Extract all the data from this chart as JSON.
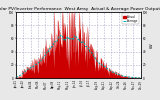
{
  "title": "Solar PV/Inverter Performance  West Array  Actual & Average Power Output",
  "title_fontsize": 3.2,
  "bg_color": "#e8e8e8",
  "plot_bg_color": "#ffffff",
  "grid_color": "#aaaacc",
  "actual_color": "#cc0000",
  "actual_edge_color": "#cc0000",
  "average_color": "#00aaaa",
  "legend_actual": "Actual",
  "legend_average": "Average",
  "ylabel_right": "kW",
  "ylim": [
    0,
    1.0
  ],
  "yticks": [
    0.0,
    0.2,
    0.4,
    0.6,
    0.8,
    1.0
  ],
  "ytick_labels_right": [
    "0",
    "20",
    "40",
    "60",
    "80",
    "100"
  ],
  "n_points": 300
}
